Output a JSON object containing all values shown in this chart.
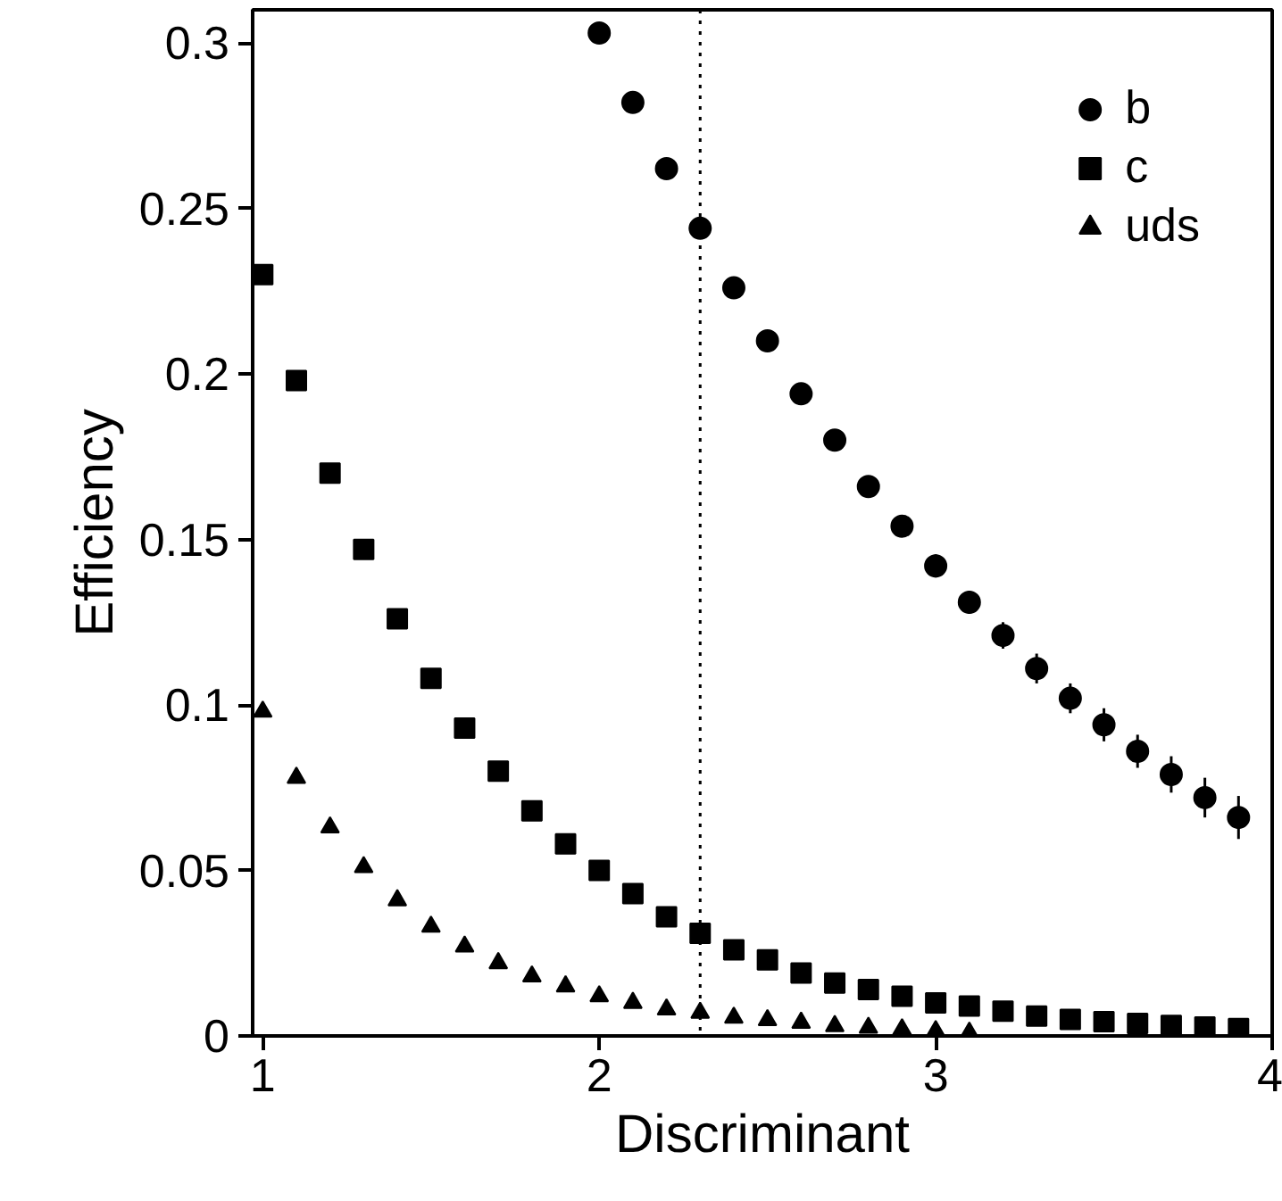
{
  "chart_data": {
    "type": "scatter",
    "xlabel": "Discriminant",
    "ylabel": "Efficiency",
    "xlim": [
      0.97,
      4
    ],
    "ylim": [
      0,
      0.31
    ],
    "xticks": [
      1,
      2,
      3,
      4
    ],
    "yticks": [
      0,
      0.05,
      0.1,
      0.15,
      0.2,
      0.25,
      0.3
    ],
    "grid": false,
    "legend": "top right",
    "ref_lines": [
      {
        "axis": "x",
        "value": 2.3,
        "line_style": "dotted",
        "color": "#000000"
      }
    ],
    "series": [
      {
        "name": "b",
        "color": "#000000",
        "marker": "circle",
        "x": [
          2.0,
          2.1,
          2.2,
          2.3,
          2.4,
          2.5,
          2.6,
          2.7,
          2.8,
          2.9,
          3.0,
          3.1,
          3.2,
          3.3,
          3.4,
          3.5,
          3.6,
          3.7,
          3.8,
          3.9
        ],
        "values": [
          0.303,
          0.282,
          0.262,
          0.244,
          0.226,
          0.21,
          0.194,
          0.18,
          0.166,
          0.154,
          0.142,
          0.131,
          0.121,
          0.111,
          0.102,
          0.094,
          0.086,
          0.079,
          0.072,
          0.066
        ],
        "errors": [
          null,
          null,
          null,
          null,
          0.002,
          0.002,
          0.002,
          0.0025,
          0.003,
          0.003,
          0.0035,
          0.0035,
          0.004,
          0.0045,
          0.0045,
          0.005,
          0.005,
          0.0055,
          0.006,
          0.0065
        ]
      },
      {
        "name": "c",
        "color": "#000000",
        "marker": "square",
        "x": [
          1.0,
          1.1,
          1.2,
          1.3,
          1.4,
          1.5,
          1.6,
          1.7,
          1.8,
          1.9,
          2.0,
          2.1,
          2.2,
          2.3,
          2.4,
          2.5,
          2.6,
          2.7,
          2.8,
          2.9,
          3.0,
          3.1,
          3.2,
          3.3,
          3.4,
          3.5,
          3.6,
          3.7,
          3.8,
          3.9
        ],
        "values": [
          0.23,
          0.198,
          0.17,
          0.147,
          0.126,
          0.108,
          0.093,
          0.08,
          0.068,
          0.058,
          0.05,
          0.043,
          0.036,
          0.031,
          0.026,
          0.023,
          0.019,
          0.016,
          0.014,
          0.012,
          0.01,
          0.009,
          0.0075,
          0.006,
          0.005,
          0.0043,
          0.0038,
          0.0032,
          0.0027,
          0.0022
        ]
      },
      {
        "name": "uds",
        "color": "#000000",
        "marker": "triangle",
        "x": [
          1.0,
          1.1,
          1.2,
          1.3,
          1.4,
          1.5,
          1.6,
          1.7,
          1.8,
          1.9,
          2.0,
          2.1,
          2.2,
          2.3,
          2.4,
          2.5,
          2.6,
          2.7,
          2.8,
          2.9,
          3.0,
          3.1
        ],
        "values": [
          0.098,
          0.078,
          0.063,
          0.051,
          0.041,
          0.033,
          0.027,
          0.022,
          0.018,
          0.015,
          0.012,
          0.01,
          0.008,
          0.007,
          0.0055,
          0.0048,
          0.004,
          0.003,
          0.0025,
          0.002,
          0.0015,
          0.001
        ]
      }
    ]
  }
}
